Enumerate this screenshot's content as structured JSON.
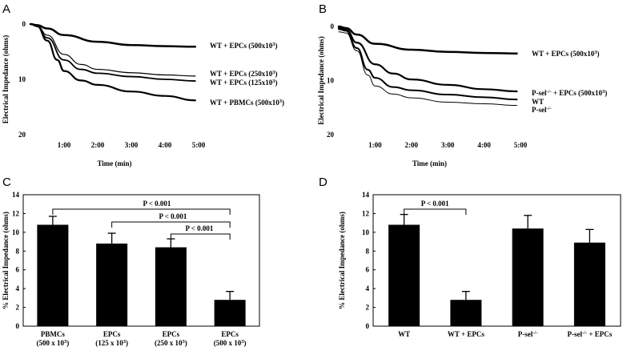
{
  "chart_data": [
    {
      "panel": "A",
      "type": "line",
      "xlabel": "Time (min)",
      "ylabel": "Electrical Impedance (ohms)",
      "x_tick_labels": [
        "1:00",
        "2:00",
        "3:00",
        "4:00",
        "5:00"
      ],
      "y_tick_labels": [
        "0",
        "10",
        "20"
      ],
      "xlim": [
        0,
        5.0
      ],
      "ylim": [
        0,
        20
      ],
      "y_inverted": true,
      "series": [
        {
          "name": "WT + EPCs (500x10",
          "sup": "3",
          "name_end": ")",
          "x": [
            0,
            0.2,
            0.5,
            1.0,
            2.0,
            3.0,
            4.0,
            4.9
          ],
          "y": [
            0,
            0.2,
            0.8,
            2.0,
            3.2,
            3.8,
            4.0,
            4.1
          ],
          "width": 2.5
        },
        {
          "name": "WT + EPCs (250x10",
          "sup": "3",
          "name_end": ")",
          "x": [
            0,
            0.2,
            0.5,
            1.0,
            1.5,
            2.0,
            3.0,
            4.0,
            4.9
          ],
          "y": [
            0,
            0.3,
            2.0,
            5.5,
            7.3,
            8.2,
            8.8,
            9.2,
            9.4
          ],
          "width": 1.2
        },
        {
          "name": "WT + EPCs (125x10",
          "sup": "3",
          "name_end": ")",
          "x": [
            0,
            0.2,
            0.5,
            1.0,
            1.5,
            2.0,
            3.0,
            4.0,
            4.9
          ],
          "y": [
            0,
            0.3,
            2.5,
            6.5,
            8.2,
            8.9,
            9.5,
            10.0,
            10.3
          ],
          "width": 1.8
        },
        {
          "name": "WT + PBMCs (500x10",
          "sup": "3",
          "name_end": ")",
          "x": [
            0,
            0.2,
            0.5,
            0.8,
            1.0,
            1.5,
            2.0,
            3.0,
            4.0,
            4.9
          ],
          "y": [
            0,
            0.4,
            3.0,
            6.5,
            8.5,
            10.2,
            11.0,
            12.2,
            13.0,
            13.8
          ],
          "width": 2.2
        }
      ]
    },
    {
      "panel": "B",
      "type": "line",
      "xlabel": "Time (min)",
      "ylabel": "Electrical Impedance (ohms)",
      "x_tick_labels": [
        "1:00",
        "2:00",
        "3:00",
        "4:00",
        "5:00"
      ],
      "y_tick_labels": [
        "0",
        "10",
        "20"
      ],
      "xlim": [
        0,
        5.0
      ],
      "ylim": [
        0,
        20
      ],
      "y_inverted": true,
      "series": [
        {
          "name": "WT + EPCs (500x10",
          "sup": "3",
          "name_end": ")",
          "x": [
            0,
            0.2,
            0.5,
            1.0,
            2.0,
            3.0,
            4.0,
            4.9
          ],
          "y": [
            0,
            0.3,
            1.5,
            3.2,
            4.3,
            4.7,
            4.9,
            5.0
          ],
          "width": 2.5
        },
        {
          "name": "P-sel",
          "sup": "-/-",
          "name_end": " + EPCs (500x10",
          "sup2": "3",
          "name_end2": ")",
          "x": [
            0,
            0.2,
            0.5,
            1.0,
            1.5,
            2.0,
            3.0,
            4.0,
            4.9
          ],
          "y": [
            0.3,
            0.6,
            3.0,
            7.0,
            8.7,
            9.8,
            10.8,
            11.6,
            12.0
          ],
          "width": 2.2
        },
        {
          "name": "WT",
          "x": [
            0,
            0.2,
            0.5,
            0.8,
            1.0,
            1.5,
            2.0,
            3.0,
            4.0,
            4.9
          ],
          "y": [
            0.5,
            0.8,
            4.0,
            8.0,
            9.5,
            11.2,
            11.8,
            12.6,
            13.1,
            13.5
          ],
          "width": 2.0
        },
        {
          "name": "P-sel",
          "sup": "-/-",
          "x": [
            0,
            0.2,
            0.5,
            0.8,
            1.0,
            1.5,
            2.0,
            3.0,
            4.0,
            4.9
          ],
          "y": [
            1.0,
            1.2,
            4.5,
            9.0,
            11.0,
            12.5,
            13.2,
            14.0,
            14.3,
            14.6
          ],
          "width": 1.0
        }
      ]
    },
    {
      "panel": "C",
      "type": "bar",
      "xlabel": "",
      "ylabel": "% Electrical Impedance (ohms)",
      "ylim": [
        0,
        14
      ],
      "y_ticks": [
        0,
        2,
        4,
        6,
        8,
        10,
        12,
        14
      ],
      "categories": [
        {
          "line1": "PBMCs",
          "line2": "(500 x 10",
          "sup": "3",
          "end": ")"
        },
        {
          "line1": "EPCs",
          "line2": "(125 x 10",
          "sup": "3",
          "end": ")"
        },
        {
          "line1": "EPCs",
          "line2": "(250 x 10",
          "sup": "3",
          "end": ")"
        },
        {
          "line1": "EPCs",
          "line2": "(500 x 10",
          "sup": "3",
          "end": ")"
        }
      ],
      "values": [
        10.8,
        8.8,
        8.4,
        2.8
      ],
      "errors": [
        0.9,
        1.1,
        0.9,
        0.9
      ],
      "significance": [
        {
          "from": 0,
          "to": 3,
          "label": "P < 0.001"
        },
        {
          "from": 1,
          "to": 3,
          "label": "P < 0.001"
        },
        {
          "from": 2,
          "to": 3,
          "label": "P < 0.001"
        }
      ]
    },
    {
      "panel": "D",
      "type": "bar",
      "xlabel": "",
      "ylabel": "% Electrical Impedance (ohms)",
      "ylim": [
        0,
        14
      ],
      "y_ticks": [
        0,
        2,
        4,
        6,
        8,
        10,
        12,
        14
      ],
      "categories": [
        {
          "line1": "WT"
        },
        {
          "line1": "WT + EPCs"
        },
        {
          "line1": "P-sel",
          "sup": "-/-"
        },
        {
          "line1": "P-sel",
          "sup": "-/-",
          "end": " + EPCs"
        }
      ],
      "values": [
        10.8,
        2.8,
        10.4,
        8.9
      ],
      "errors": [
        1.1,
        0.9,
        1.4,
        1.4
      ],
      "significance": [
        {
          "from": 0,
          "to": 1,
          "label": "P < 0.001"
        }
      ]
    }
  ]
}
